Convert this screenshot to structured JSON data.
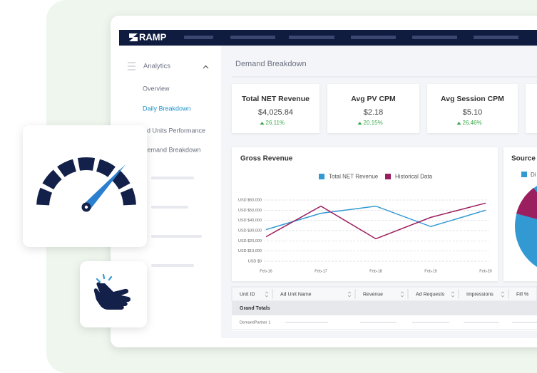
{
  "header": {
    "brand": "RAMP"
  },
  "sidebar": {
    "section": "Analytics",
    "items": [
      "Overview",
      "Daily Breakdown",
      "Ad Units Performance",
      "Demand Breakdown"
    ]
  },
  "page": {
    "title": "Demand Breakdown"
  },
  "kpis": [
    {
      "label": "Total NET Revenue",
      "value": "$4,025.84",
      "change": "26.11%"
    },
    {
      "label": "Avg PV CPM",
      "value": "$2.18",
      "change": "20.15%"
    },
    {
      "label": "Avg Session CPM",
      "value": "$5.10",
      "change": "26.46%"
    }
  ],
  "chart_data": {
    "type": "line",
    "title": "Gross Revenue",
    "categories": [
      "Feb-16",
      "Feb-17",
      "Feb-18",
      "Feb-19",
      "Feb-20"
    ],
    "series": [
      {
        "name": "Total NET Revenue",
        "color": "#3399d3",
        "values": [
          31000,
          47000,
          54000,
          34000,
          50000
        ]
      },
      {
        "name": "Historical Data",
        "color": "#9b1f5e",
        "values": [
          24000,
          54000,
          22000,
          43000,
          57000
        ]
      }
    ],
    "ylim": [
      0,
      60000
    ],
    "yticks": [
      {
        "value": 0,
        "label": "USD $0"
      },
      {
        "value": 10000,
        "label": "USD $10,000"
      },
      {
        "value": 20000,
        "label": "USD $20,000"
      },
      {
        "value": 30000,
        "label": "USD $30,000"
      },
      {
        "value": 40000,
        "label": "USD $40,000"
      },
      {
        "value": 50000,
        "label": "USD $50,000"
      },
      {
        "value": 60000,
        "label": "USD $60,000"
      }
    ],
    "grid": true
  },
  "source_panel": {
    "title": "Source",
    "legend": [
      "Di"
    ]
  },
  "table": {
    "columns": [
      "Unit ID",
      "Ad Unit Name",
      "Revenue",
      "Ad Requests",
      "Impressions",
      "Fill %"
    ],
    "rows": [
      [
        "Grand Totals"
      ],
      [
        "DemandPartner 1"
      ]
    ]
  }
}
